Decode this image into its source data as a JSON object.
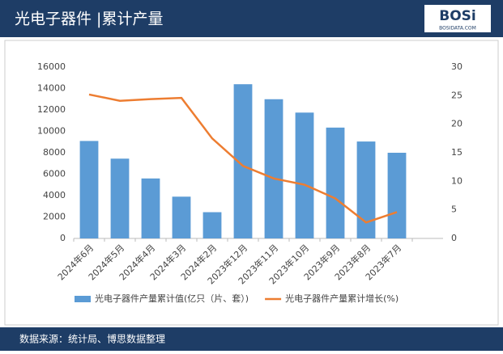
{
  "header": {
    "title": "光电子器件 |累计产量",
    "logo": "BOSi",
    "logo_sub": "BOSIDATA.COM"
  },
  "chart_data": {
    "type": "bar-line",
    "categories": [
      "2024年6月",
      "2024年5月",
      "2024年4月",
      "2024年3月",
      "2024年2月",
      "2023年12月",
      "2023年11月",
      "2023年10月",
      "2023年9月",
      "2023年8月",
      "2023年7月",
      null
    ],
    "series": [
      {
        "name": "光电子器件产量累计值(亿只（片、套）)",
        "type": "bar",
        "color": "#5b9bd5",
        "values": [
          9100,
          7450,
          5600,
          3900,
          2450,
          14400,
          13000,
          11750,
          10350,
          9050,
          8000,
          null
        ]
      },
      {
        "name": "光电子器件产量累计增长(%)",
        "type": "line",
        "axis": "y2",
        "color": "#ed7d31",
        "values": [
          25.2,
          24.1,
          24.4,
          24.6,
          17.5,
          12.7,
          10.5,
          9.4,
          7.0,
          2.8,
          4.6,
          null
        ]
      }
    ],
    "ylim": [
      0,
      16000
    ],
    "yticks": [
      0,
      2000,
      4000,
      6000,
      8000,
      10000,
      12000,
      14000,
      16000
    ],
    "y2lim": [
      0,
      30
    ],
    "y2ticks": [
      0,
      5,
      10,
      15,
      20,
      25,
      30
    ],
    "grid": false,
    "legend": "bottom"
  },
  "footer": {
    "source": "数据来源：统计局、博思数据整理"
  }
}
